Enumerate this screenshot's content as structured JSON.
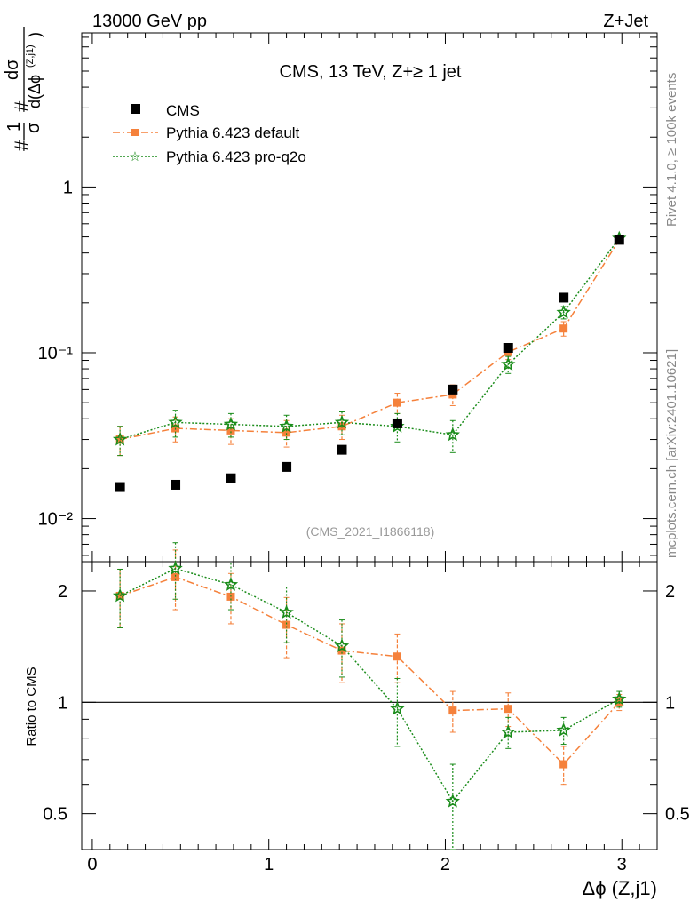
{
  "header": {
    "left": "13000 GeV pp",
    "right": "Z+Jet"
  },
  "side_labels": {
    "rivet": "Rivet 4.1.0, ≥ 100k events",
    "mcplots": "mcplots.cern.ch [arXiv:2401.10621]"
  },
  "chart_data": {
    "type": "scatter",
    "title": "CMS, 13 TeV, Z+≥ 1 jet",
    "analysis_label": "(CMS_2021_I1866118)",
    "xlabel": "Δϕ (Z,j1)",
    "ylabel_main": "#1/σ # dσ/d(Δϕ(Z,j1))",
    "ylabel_ratio": "Ratio to CMS",
    "xlim": [
      -0.06,
      3.2
    ],
    "ylim_main": [
      0.0055,
      8.5
    ],
    "ylim_ratio": [
      0.4,
      2.4
    ],
    "main_y_ticks": [
      {
        "value": 0.01,
        "label": "10⁻²"
      },
      {
        "value": 0.1,
        "label": "10⁻¹"
      },
      {
        "value": 1,
        "label": "1"
      }
    ],
    "ratio_y_ticks": [
      {
        "value": 0.5,
        "label": "0.5"
      },
      {
        "value": 1,
        "label": "1"
      },
      {
        "value": 2,
        "label": "2"
      }
    ],
    "x_ticks": [
      {
        "value": 0,
        "label": "0"
      },
      {
        "value": 1,
        "label": "1"
      },
      {
        "value": 2,
        "label": "2"
      },
      {
        "value": 3,
        "label": "3"
      }
    ],
    "x": [
      0.157,
      0.471,
      0.785,
      1.1,
      1.414,
      1.728,
      2.042,
      2.356,
      2.67,
      2.985
    ],
    "series": [
      {
        "name": "CMS",
        "color": "#000000",
        "marker": "square",
        "values": [
          0.0155,
          0.016,
          0.0175,
          0.0205,
          0.026,
          0.0375,
          0.06,
          0.107,
          0.215,
          0.48
        ],
        "errors": [
          0.0005,
          0.0005,
          0.0005,
          0.0007,
          0.0008,
          0.001,
          0.002,
          0.003,
          0.006,
          0.012
        ]
      },
      {
        "name": "Pythia 6.423 default",
        "color": "#f5813b",
        "marker": "square",
        "linestyle": "dashdot",
        "values": [
          0.03,
          0.035,
          0.034,
          0.033,
          0.036,
          0.05,
          0.056,
          0.101,
          0.14,
          0.48
        ],
        "errors": [
          0.006,
          0.006,
          0.006,
          0.006,
          0.006,
          0.007,
          0.008,
          0.01,
          0.014,
          0.02
        ],
        "ratio": [
          1.94,
          2.18,
          1.93,
          1.62,
          1.38,
          1.33,
          0.95,
          0.96,
          0.68,
          1.0
        ],
        "ratio_errors": [
          0.35,
          0.4,
          0.3,
          0.3,
          0.25,
          0.2,
          0.12,
          0.1,
          0.08,
          0.05
        ]
      },
      {
        "name": "Pythia 6.423 pro-q2o",
        "color": "#1a8c1a",
        "marker": "star",
        "linestyle": "dotted",
        "values": [
          0.03,
          0.038,
          0.037,
          0.036,
          0.038,
          0.036,
          0.032,
          0.085,
          0.175,
          0.49
        ],
        "errors": [
          0.006,
          0.007,
          0.006,
          0.006,
          0.006,
          0.007,
          0.007,
          0.01,
          0.015,
          0.02
        ],
        "ratio": [
          1.94,
          2.3,
          2.08,
          1.75,
          1.42,
          0.96,
          0.54,
          0.83,
          0.84,
          1.02
        ],
        "ratio_errors": [
          0.35,
          0.4,
          0.3,
          0.3,
          0.25,
          0.2,
          0.14,
          0.08,
          0.07,
          0.05
        ]
      }
    ]
  }
}
